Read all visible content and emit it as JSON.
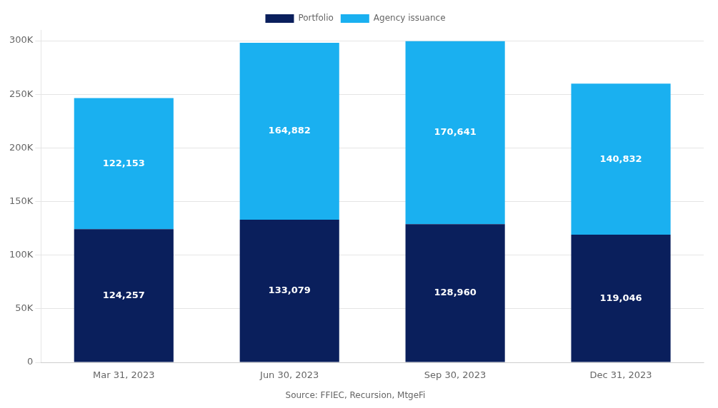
{
  "chart_data": {
    "type": "bar",
    "stacked": true,
    "categories": [
      "Mar 31, 2023",
      "Jun 30, 2023",
      "Sep 30, 2023",
      "Dec 31, 2023"
    ],
    "series": [
      {
        "name": "Portfolio",
        "color": "#0a1f5c",
        "values": [
          124257,
          133079,
          128960,
          119046
        ],
        "value_labels": [
          "124,257",
          "133,079",
          "128,960",
          "119,046"
        ]
      },
      {
        "name": "Agency issuance",
        "color": "#1ab0f0",
        "values": [
          122153,
          164882,
          170641,
          140832
        ],
        "value_labels": [
          "122,153",
          "164,882",
          "170,641",
          "140,832"
        ]
      }
    ],
    "ylim": [
      0,
      310000
    ],
    "yticks": [
      0,
      {
        "value": 50000,
        "label": "50K"
      },
      {
        "value": 100000,
        "label": "100K"
      },
      {
        "value": 150000,
        "label": "150K"
      },
      {
        "value": 200000,
        "label": "200K"
      },
      {
        "value": 250000,
        "label": "250K"
      },
      {
        "value": 300000,
        "label": "300K"
      }
    ],
    "grid": true,
    "legend": "top",
    "data_labels": true,
    "annotation": "Source: FFIEC, Recursion, MtgeFi"
  }
}
